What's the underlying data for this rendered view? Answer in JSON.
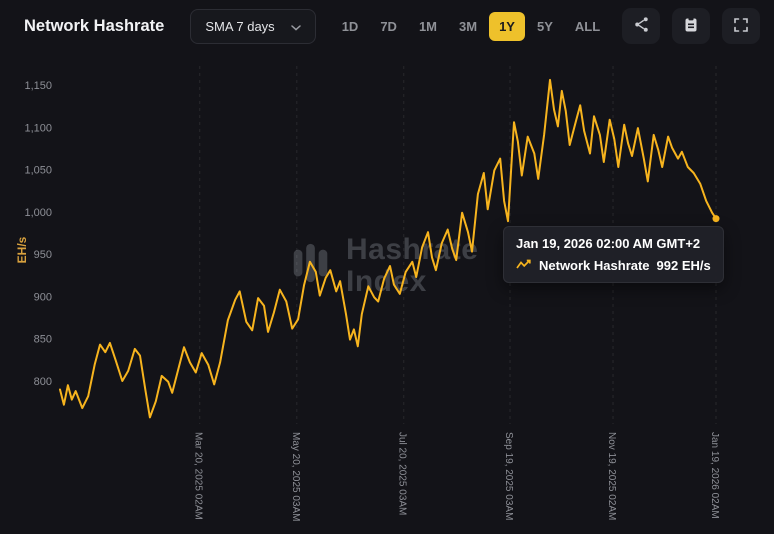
{
  "header": {
    "title": "Network Hashrate",
    "sma_dropdown": {
      "label": "SMA 7 days"
    },
    "active_range": "1Y",
    "ranges": [
      {
        "label": "1D"
      },
      {
        "label": "7D"
      },
      {
        "label": "1M"
      },
      {
        "label": "3M"
      },
      {
        "label": "1Y"
      },
      {
        "label": "5Y"
      },
      {
        "label": "ALL"
      }
    ],
    "icon_buttons": [
      "share-icon",
      "clipboard-icon",
      "fullscreen-icon"
    ]
  },
  "tooltip": {
    "title": "Jan 19, 2026 02:00 AM GMT+2",
    "series_label": "Network Hashrate",
    "value": "992 EH/s"
  },
  "watermark": {
    "line1": "Hashrate",
    "line2": "Index"
  },
  "colors": {
    "background": "#131318",
    "accent": "#eec12b",
    "line": "#f7b41e",
    "ylabel": "#d9a23e",
    "text_muted": "#8d8f96",
    "grid": "rgba(255,255,255,0.09)"
  },
  "chart_data": {
    "type": "line",
    "title": "Network Hashrate",
    "series_name": "Network Hashrate (SMA 7 days)",
    "unit": "EH/s",
    "ylabel": "EH/s",
    "ylim": [
      750,
      1170
    ],
    "y_ticks": [
      800,
      850,
      900,
      950,
      1000,
      1050,
      1100,
      1150
    ],
    "x_ticks": [
      {
        "label": "Mar 20, 2025 02AM",
        "t": 0.213
      },
      {
        "label": "May 20, 2025 03AM",
        "t": 0.361
      },
      {
        "label": "Jul 20, 2025 03AM",
        "t": 0.524
      },
      {
        "label": "Sep 19, 2025 03AM",
        "t": 0.686
      },
      {
        "label": "Nov 19, 2025 02AM",
        "t": 0.843
      },
      {
        "label": "Jan 19, 2026 02AM",
        "t": 1.0
      }
    ],
    "grid": "vertical-dashed",
    "legend": "none",
    "last_point": {
      "date": "Jan 19, 2026 02:00 AM GMT+2",
      "value": 992
    },
    "points": [
      [
        0,
        790
      ],
      [
        0.006,
        772
      ],
      [
        0.012,
        795
      ],
      [
        0.018,
        778
      ],
      [
        0.024,
        788
      ],
      [
        0.034,
        768
      ],
      [
        0.043,
        782
      ],
      [
        0.053,
        820
      ],
      [
        0.061,
        843
      ],
      [
        0.069,
        834
      ],
      [
        0.076,
        845
      ],
      [
        0.085,
        824
      ],
      [
        0.095,
        800
      ],
      [
        0.104,
        812
      ],
      [
        0.114,
        838
      ],
      [
        0.122,
        830
      ],
      [
        0.13,
        790
      ],
      [
        0.137,
        757
      ],
      [
        0.146,
        776
      ],
      [
        0.155,
        806
      ],
      [
        0.165,
        799
      ],
      [
        0.171,
        786
      ],
      [
        0.18,
        813
      ],
      [
        0.189,
        840
      ],
      [
        0.198,
        822
      ],
      [
        0.207,
        810
      ],
      [
        0.216,
        833
      ],
      [
        0.226,
        819
      ],
      [
        0.235,
        796
      ],
      [
        0.244,
        822
      ],
      [
        0.256,
        872
      ],
      [
        0.267,
        896
      ],
      [
        0.274,
        906
      ],
      [
        0.284,
        870
      ],
      [
        0.293,
        860
      ],
      [
        0.302,
        898
      ],
      [
        0.311,
        889
      ],
      [
        0.317,
        858
      ],
      [
        0.326,
        881
      ],
      [
        0.335,
        908
      ],
      [
        0.345,
        894
      ],
      [
        0.354,
        862
      ],
      [
        0.363,
        873
      ],
      [
        0.372,
        913
      ],
      [
        0.381,
        941
      ],
      [
        0.39,
        929
      ],
      [
        0.396,
        901
      ],
      [
        0.405,
        922
      ],
      [
        0.412,
        931
      ],
      [
        0.421,
        906
      ],
      [
        0.427,
        918
      ],
      [
        0.436,
        879
      ],
      [
        0.442,
        849
      ],
      [
        0.448,
        861
      ],
      [
        0.454,
        841
      ],
      [
        0.46,
        879
      ],
      [
        0.47,
        912
      ],
      [
        0.479,
        899
      ],
      [
        0.485,
        894
      ],
      [
        0.494,
        921
      ],
      [
        0.503,
        936
      ],
      [
        0.509,
        914
      ],
      [
        0.518,
        903
      ],
      [
        0.527,
        929
      ],
      [
        0.537,
        941
      ],
      [
        0.543,
        923
      ],
      [
        0.552,
        958
      ],
      [
        0.561,
        976
      ],
      [
        0.567,
        946
      ],
      [
        0.573,
        931
      ],
      [
        0.582,
        963
      ],
      [
        0.591,
        979
      ],
      [
        0.598,
        956
      ],
      [
        0.604,
        943
      ],
      [
        0.613,
        999
      ],
      [
        0.622,
        976
      ],
      [
        0.628,
        953
      ],
      [
        0.637,
        1021
      ],
      [
        0.646,
        1046
      ],
      [
        0.652,
        1003
      ],
      [
        0.662,
        1049
      ],
      [
        0.671,
        1063
      ],
      [
        0.677,
        1013
      ],
      [
        0.683,
        989
      ],
      [
        0.692,
        1106
      ],
      [
        0.698,
        1083
      ],
      [
        0.704,
        1043
      ],
      [
        0.713,
        1089
      ],
      [
        0.723,
        1069
      ],
      [
        0.729,
        1039
      ],
      [
        0.738,
        1091
      ],
      [
        0.747,
        1156
      ],
      [
        0.753,
        1121
      ],
      [
        0.759,
        1101
      ],
      [
        0.765,
        1143
      ],
      [
        0.771,
        1119
      ],
      [
        0.777,
        1079
      ],
      [
        0.787,
        1109
      ],
      [
        0.793,
        1126
      ],
      [
        0.799,
        1096
      ],
      [
        0.808,
        1069
      ],
      [
        0.814,
        1113
      ],
      [
        0.823,
        1091
      ],
      [
        0.829,
        1059
      ],
      [
        0.838,
        1109
      ],
      [
        0.845,
        1086
      ],
      [
        0.851,
        1053
      ],
      [
        0.86,
        1103
      ],
      [
        0.866,
        1081
      ],
      [
        0.872,
        1066
      ],
      [
        0.881,
        1099
      ],
      [
        0.89,
        1063
      ],
      [
        0.896,
        1036
      ],
      [
        0.905,
        1091
      ],
      [
        0.912,
        1073
      ],
      [
        0.918,
        1053
      ],
      [
        0.927,
        1089
      ],
      [
        0.933,
        1076
      ],
      [
        0.942,
        1063
      ],
      [
        0.948,
        1071
      ],
      [
        0.957,
        1053
      ],
      [
        0.966,
        1046
      ],
      [
        0.976,
        1033
      ],
      [
        0.985,
        1013
      ],
      [
        0.994,
        999
      ],
      [
        1,
        992
      ]
    ]
  }
}
